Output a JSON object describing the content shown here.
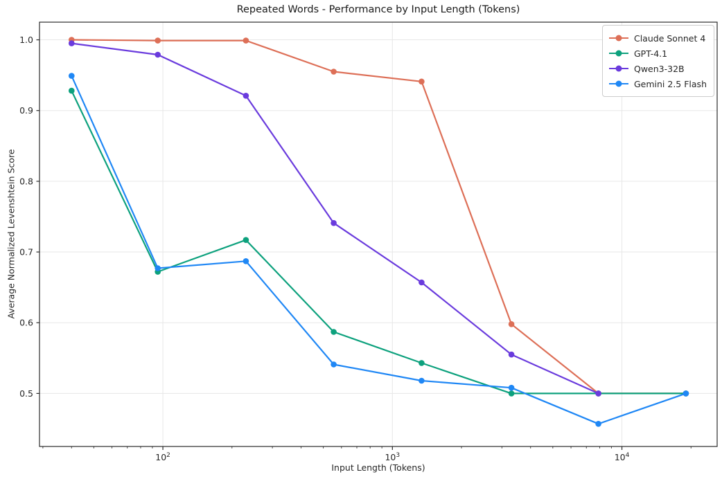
{
  "chart_data": {
    "type": "line",
    "title": "Repeated Words - Performance by Input Length (Tokens)",
    "xlabel": "Input Length (Tokens)",
    "ylabel": "Average Normalized Levenshtein Score",
    "x_scale": "log",
    "grid": true,
    "legend_position": "upper right",
    "xlim": [
      29,
      26000
    ],
    "ylim": [
      0.425,
      1.025
    ],
    "x": [
      40,
      95,
      230,
      555,
      1340,
      3300,
      7900,
      19000
    ],
    "series": [
      {
        "name": "Claude Sonnet 4",
        "color": "#dd6f57",
        "values": [
          1.0,
          0.999,
          0.999,
          0.955,
          0.941,
          0.598,
          0.5,
          0.5
        ]
      },
      {
        "name": "GPT-4.1",
        "color": "#0da17d",
        "values": [
          0.928,
          0.672,
          0.717,
          0.587,
          0.543,
          0.5,
          0.5,
          0.5
        ]
      },
      {
        "name": "Qwen3-32B",
        "color": "#6a3bdd",
        "values": [
          0.995,
          0.979,
          0.921,
          0.741,
          0.657,
          0.555,
          0.5,
          null
        ]
      },
      {
        "name": "Gemini 2.5 Flash",
        "color": "#1f87f5",
        "values": [
          0.949,
          0.677,
          0.687,
          0.541,
          0.518,
          0.508,
          0.457,
          0.5
        ]
      }
    ],
    "y_ticks": [
      {
        "label": "0.5",
        "value": 0.5
      },
      {
        "label": "0.6",
        "value": 0.6
      },
      {
        "label": "0.7",
        "value": 0.7
      },
      {
        "label": "0.8",
        "value": 0.8
      },
      {
        "label": "0.9",
        "value": 0.9
      },
      {
        "label": "1.0",
        "value": 1.0
      }
    ],
    "x_ticks": [
      {
        "base": "10",
        "exp": "2",
        "value": 100
      },
      {
        "base": "10",
        "exp": "3",
        "value": 1000
      },
      {
        "base": "10",
        "exp": "4",
        "value": 10000
      }
    ],
    "colors": {
      "grid": "#e7e7e7",
      "spine": "#2b2b2b",
      "tick_label": "#262626"
    }
  }
}
